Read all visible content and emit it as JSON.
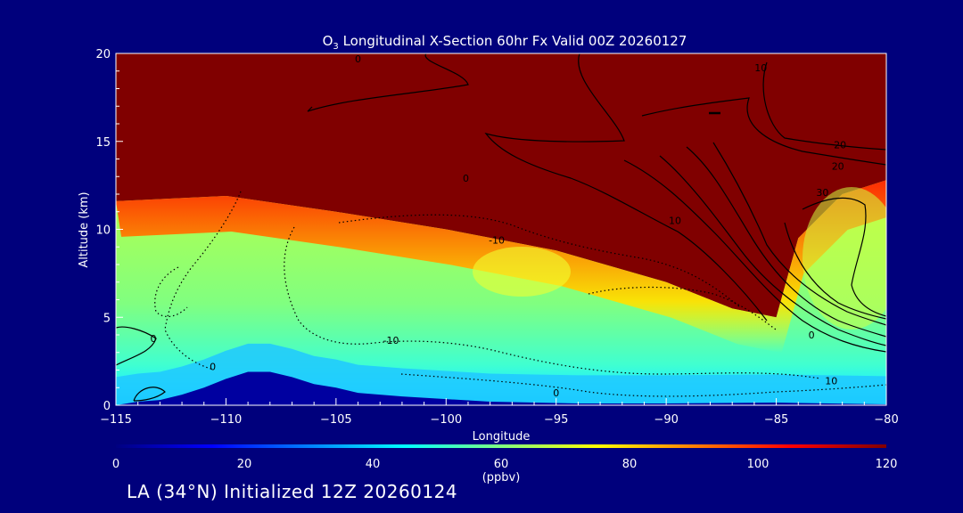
{
  "chart_data": {
    "type": "heatmap",
    "title": "O3 Longitudinal X-Section 60hr  Fx Valid 00Z 20260127",
    "title_main": "O",
    "title_sub": "3",
    "title_rest": " Longitudinal X-Section 60hr  Fx Valid 00Z 20260127",
    "xlabel": "Longitude",
    "ylabel": "Altitude (km)",
    "xlim": [
      -115,
      -80
    ],
    "ylim": [
      0,
      20
    ],
    "x_ticks": [
      -115,
      -110,
      -105,
      -100,
      -95,
      -90,
      -85,
      -80
    ],
    "x_tick_labels": [
      "−115",
      "−110",
      "−105",
      "−100",
      "−95",
      "−90",
      "−85",
      "−80"
    ],
    "y_ticks": [
      0,
      5,
      10,
      15,
      20
    ],
    "y_tick_labels": [
      "0",
      "5",
      "10",
      "15",
      "20"
    ],
    "colorbar": {
      "min": 0,
      "max": 120,
      "ticks": [
        0,
        20,
        40,
        60,
        80,
        100,
        120
      ],
      "tick_labels": [
        "0",
        "20",
        "40",
        "60",
        "80",
        "100",
        "120"
      ],
      "unit": "(ppbv)",
      "colormap": [
        "#000080",
        "#0000ff",
        "#0080ff",
        "#00ffff",
        "#80ff80",
        "#ffff00",
        "#ff8000",
        "#ff0000",
        "#800000"
      ]
    },
    "ozone_field": {
      "stratosphere_value": 120,
      "tropopause_altitude_km": [
        [
          -115,
          11.6
        ],
        [
          -110,
          11.9
        ],
        [
          -105,
          11.0
        ],
        [
          -100,
          10.0
        ],
        [
          -95,
          8.8
        ],
        [
          -90,
          7.0
        ],
        [
          -87,
          5.5
        ],
        [
          -85,
          5.0
        ],
        [
          -84,
          9.5
        ],
        [
          -82,
          12.0
        ],
        [
          -80,
          12.8
        ]
      ],
      "troposphere_values": [
        {
          "lon": -112,
          "alt": 7,
          "value": 55
        },
        {
          "lon": -104,
          "alt": 7,
          "value": 62
        },
        {
          "lon": -98,
          "alt": 7.5,
          "value": 72
        },
        {
          "lon": -92,
          "alt": 5,
          "value": 55
        },
        {
          "lon": -82,
          "alt": 8,
          "value": 65
        },
        {
          "lon": -100,
          "alt": 1.5,
          "value": 45
        }
      ],
      "terrain_km": [
        [
          -115,
          0
        ],
        [
          -114,
          0.2
        ],
        [
          -113,
          0.3
        ],
        [
          -112,
          0.6
        ],
        [
          -111,
          1.0
        ],
        [
          -110,
          1.5
        ],
        [
          -109,
          1.9
        ],
        [
          -108,
          1.9
        ],
        [
          -107,
          1.6
        ],
        [
          -106,
          1.2
        ],
        [
          -105,
          1.0
        ],
        [
          -104,
          0.7
        ],
        [
          -102,
          0.5
        ],
        [
          -100,
          0.35
        ],
        [
          -98,
          0.2
        ],
        [
          -96,
          0.15
        ],
        [
          -94,
          0.1
        ],
        [
          -90,
          0.1
        ],
        [
          -85,
          0.15
        ],
        [
          -80,
          0.05
        ]
      ]
    },
    "contour_labels": [
      {
        "text": "0",
        "lon": -113.3,
        "alt": 3.6
      },
      {
        "text": "0",
        "lon": -110.6,
        "alt": 2.0
      },
      {
        "text": "0",
        "lon": -99.1,
        "alt": 12.7
      },
      {
        "text": "-10",
        "lon": -97.7,
        "alt": 9.2
      },
      {
        "text": "-10",
        "lon": -102.5,
        "alt": 3.5
      },
      {
        "text": "0",
        "lon": -95.0,
        "alt": 0.5
      },
      {
        "text": "10",
        "lon": -89.6,
        "alt": 10.3
      },
      {
        "text": "20",
        "lon": -82.1,
        "alt": 14.6
      },
      {
        "text": "20",
        "lon": -82.2,
        "alt": 13.4
      },
      {
        "text": "30",
        "lon": -82.9,
        "alt": 11.9
      },
      {
        "text": "0",
        "lon": -83.4,
        "alt": 3.8
      },
      {
        "text": "10",
        "lon": -82.5,
        "alt": 1.2
      },
      {
        "text": "0",
        "lon": -104.0,
        "alt": 19.5
      },
      {
        "text": "10",
        "lon": -85.7,
        "alt": 19.0
      }
    ]
  },
  "footer": {
    "text": "LA (34°N) Initialized 12Z 20260124"
  },
  "colors": {
    "background": "#00007c",
    "stratosphere": "#800000",
    "contour": "#000000"
  }
}
